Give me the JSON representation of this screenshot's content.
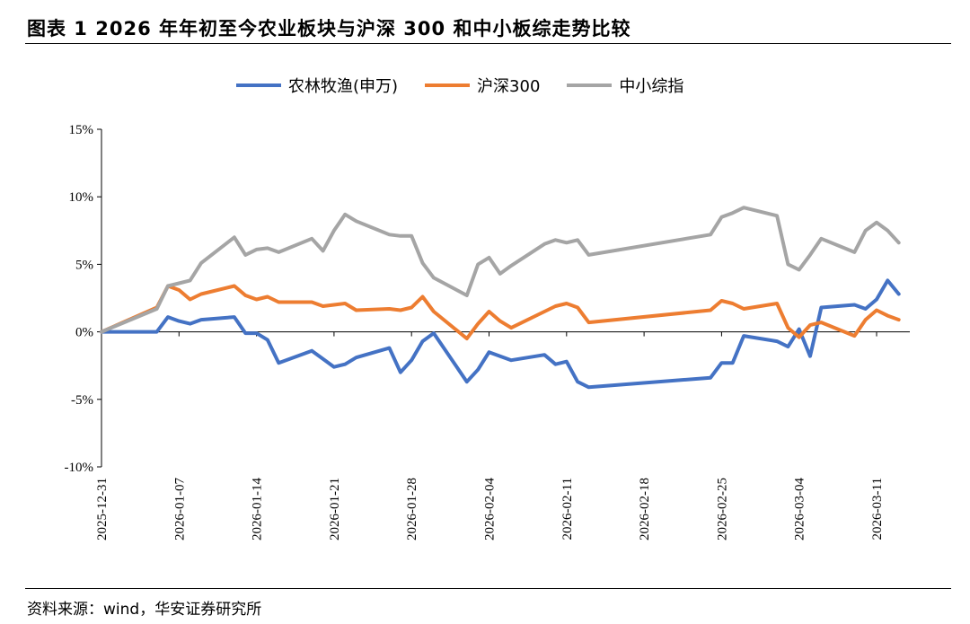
{
  "header": {
    "title": "图表 1 2026 年年初至今农业板块与沪深 300 和中小板综走势比较"
  },
  "footer": {
    "source": "资料来源：wind，华安证券研究所"
  },
  "chart_data": {
    "type": "line",
    "title": "",
    "xlabel": "",
    "ylabel": "",
    "ylim": [
      -10,
      15
    ],
    "yticks": [
      "15%",
      "10%",
      "5%",
      "0%",
      "-5%",
      "-10%"
    ],
    "ytick_values": [
      15,
      10,
      5,
      0,
      -5,
      -10
    ],
    "xticks": [
      "2025-12-31",
      "2026-01-07",
      "2026-01-14",
      "2026-01-21",
      "2026-01-28",
      "2026-02-04",
      "2026-02-11",
      "2026-02-18",
      "2026-02-25",
      "2026-03-04",
      "2026-03-11"
    ],
    "x_start": "2025-12-31",
    "legend_position": "top",
    "grid": false,
    "series": [
      {
        "name": "农林牧渔(申万)",
        "color": "#4472C4",
        "x": [
          "2025-12-31",
          "2026-01-05",
          "2026-01-06",
          "2026-01-07",
          "2026-01-08",
          "2026-01-09",
          "2026-01-12",
          "2026-01-13",
          "2026-01-14",
          "2026-01-15",
          "2026-01-16",
          "2026-01-19",
          "2026-01-20",
          "2026-01-21",
          "2026-01-22",
          "2026-01-23",
          "2026-01-26",
          "2026-01-27",
          "2026-01-28",
          "2026-01-29",
          "2026-01-30",
          "2026-02-02",
          "2026-02-03",
          "2026-02-04",
          "2026-02-05",
          "2026-02-06",
          "2026-02-09",
          "2026-02-10",
          "2026-02-11",
          "2026-02-12",
          "2026-02-13",
          "2026-02-24",
          "2026-02-25",
          "2026-02-26",
          "2026-02-27",
          "2026-03-02",
          "2026-03-03",
          "2026-03-04",
          "2026-03-05",
          "2026-03-06",
          "2026-03-09",
          "2026-03-10",
          "2026-03-11",
          "2026-03-12",
          "2026-03-13"
        ],
        "values": [
          0.0,
          0.0,
          1.1,
          0.8,
          0.6,
          0.9,
          1.1,
          -0.1,
          -0.1,
          -0.6,
          -2.3,
          -1.4,
          -2.0,
          -2.6,
          -2.4,
          -1.9,
          -1.2,
          -3.0,
          -2.1,
          -0.7,
          -0.1,
          -3.7,
          -2.8,
          -1.5,
          -1.8,
          -2.1,
          -1.7,
          -2.4,
          -2.2,
          -3.7,
          -4.1,
          -3.4,
          -2.3,
          -2.3,
          -0.3,
          -0.7,
          -1.1,
          0.2,
          -1.8,
          1.8,
          2.0,
          1.7,
          2.4,
          3.8,
          2.8
        ]
      },
      {
        "name": "沪深300",
        "color": "#ED7D31",
        "x": [
          "2025-12-31",
          "2026-01-05",
          "2026-01-06",
          "2026-01-07",
          "2026-01-08",
          "2026-01-09",
          "2026-01-12",
          "2026-01-13",
          "2026-01-14",
          "2026-01-15",
          "2026-01-16",
          "2026-01-19",
          "2026-01-20",
          "2026-01-21",
          "2026-01-22",
          "2026-01-23",
          "2026-01-26",
          "2026-01-27",
          "2026-01-28",
          "2026-01-29",
          "2026-01-30",
          "2026-02-02",
          "2026-02-03",
          "2026-02-04",
          "2026-02-05",
          "2026-02-06",
          "2026-02-09",
          "2026-02-10",
          "2026-02-11",
          "2026-02-12",
          "2026-02-13",
          "2026-02-24",
          "2026-02-25",
          "2026-02-26",
          "2026-02-27",
          "2026-03-02",
          "2026-03-03",
          "2026-03-04",
          "2026-03-05",
          "2026-03-06",
          "2026-03-09",
          "2026-03-10",
          "2026-03-11",
          "2026-03-12",
          "2026-03-13"
        ],
        "values": [
          0.0,
          1.8,
          3.4,
          3.1,
          2.4,
          2.8,
          3.4,
          2.7,
          2.4,
          2.6,
          2.2,
          2.2,
          1.9,
          2.0,
          2.1,
          1.6,
          1.7,
          1.6,
          1.8,
          2.6,
          1.5,
          -0.5,
          0.6,
          1.5,
          0.8,
          0.3,
          1.5,
          1.9,
          2.1,
          1.8,
          0.7,
          1.6,
          2.3,
          2.1,
          1.7,
          2.1,
          0.3,
          -0.4,
          0.5,
          0.7,
          -0.3,
          0.9,
          1.6,
          1.2,
          0.9
        ]
      },
      {
        "name": "中小综指",
        "color": "#A5A5A5",
        "x": [
          "2025-12-31",
          "2026-01-05",
          "2026-01-06",
          "2026-01-07",
          "2026-01-08",
          "2026-01-09",
          "2026-01-12",
          "2026-01-13",
          "2026-01-14",
          "2026-01-15",
          "2026-01-16",
          "2026-01-19",
          "2026-01-20",
          "2026-01-21",
          "2026-01-22",
          "2026-01-23",
          "2026-01-26",
          "2026-01-27",
          "2026-01-28",
          "2026-01-29",
          "2026-01-30",
          "2026-02-02",
          "2026-02-03",
          "2026-02-04",
          "2026-02-05",
          "2026-02-06",
          "2026-02-09",
          "2026-02-10",
          "2026-02-11",
          "2026-02-12",
          "2026-02-13",
          "2026-02-24",
          "2026-02-25",
          "2026-02-26",
          "2026-02-27",
          "2026-03-02",
          "2026-03-03",
          "2026-03-04",
          "2026-03-05",
          "2026-03-06",
          "2026-03-09",
          "2026-03-10",
          "2026-03-11",
          "2026-03-12",
          "2026-03-13"
        ],
        "values": [
          0.0,
          1.7,
          3.4,
          3.6,
          3.8,
          5.1,
          7.0,
          5.7,
          6.1,
          6.2,
          5.9,
          6.9,
          6.0,
          7.5,
          8.7,
          8.2,
          7.2,
          7.1,
          7.1,
          5.1,
          4.0,
          2.7,
          5.0,
          5.5,
          4.3,
          4.9,
          6.5,
          6.8,
          6.6,
          6.8,
          5.7,
          7.2,
          8.5,
          8.8,
          9.2,
          8.6,
          5.0,
          4.6,
          5.7,
          6.9,
          5.9,
          7.5,
          8.1,
          7.5,
          6.6
        ]
      }
    ]
  }
}
